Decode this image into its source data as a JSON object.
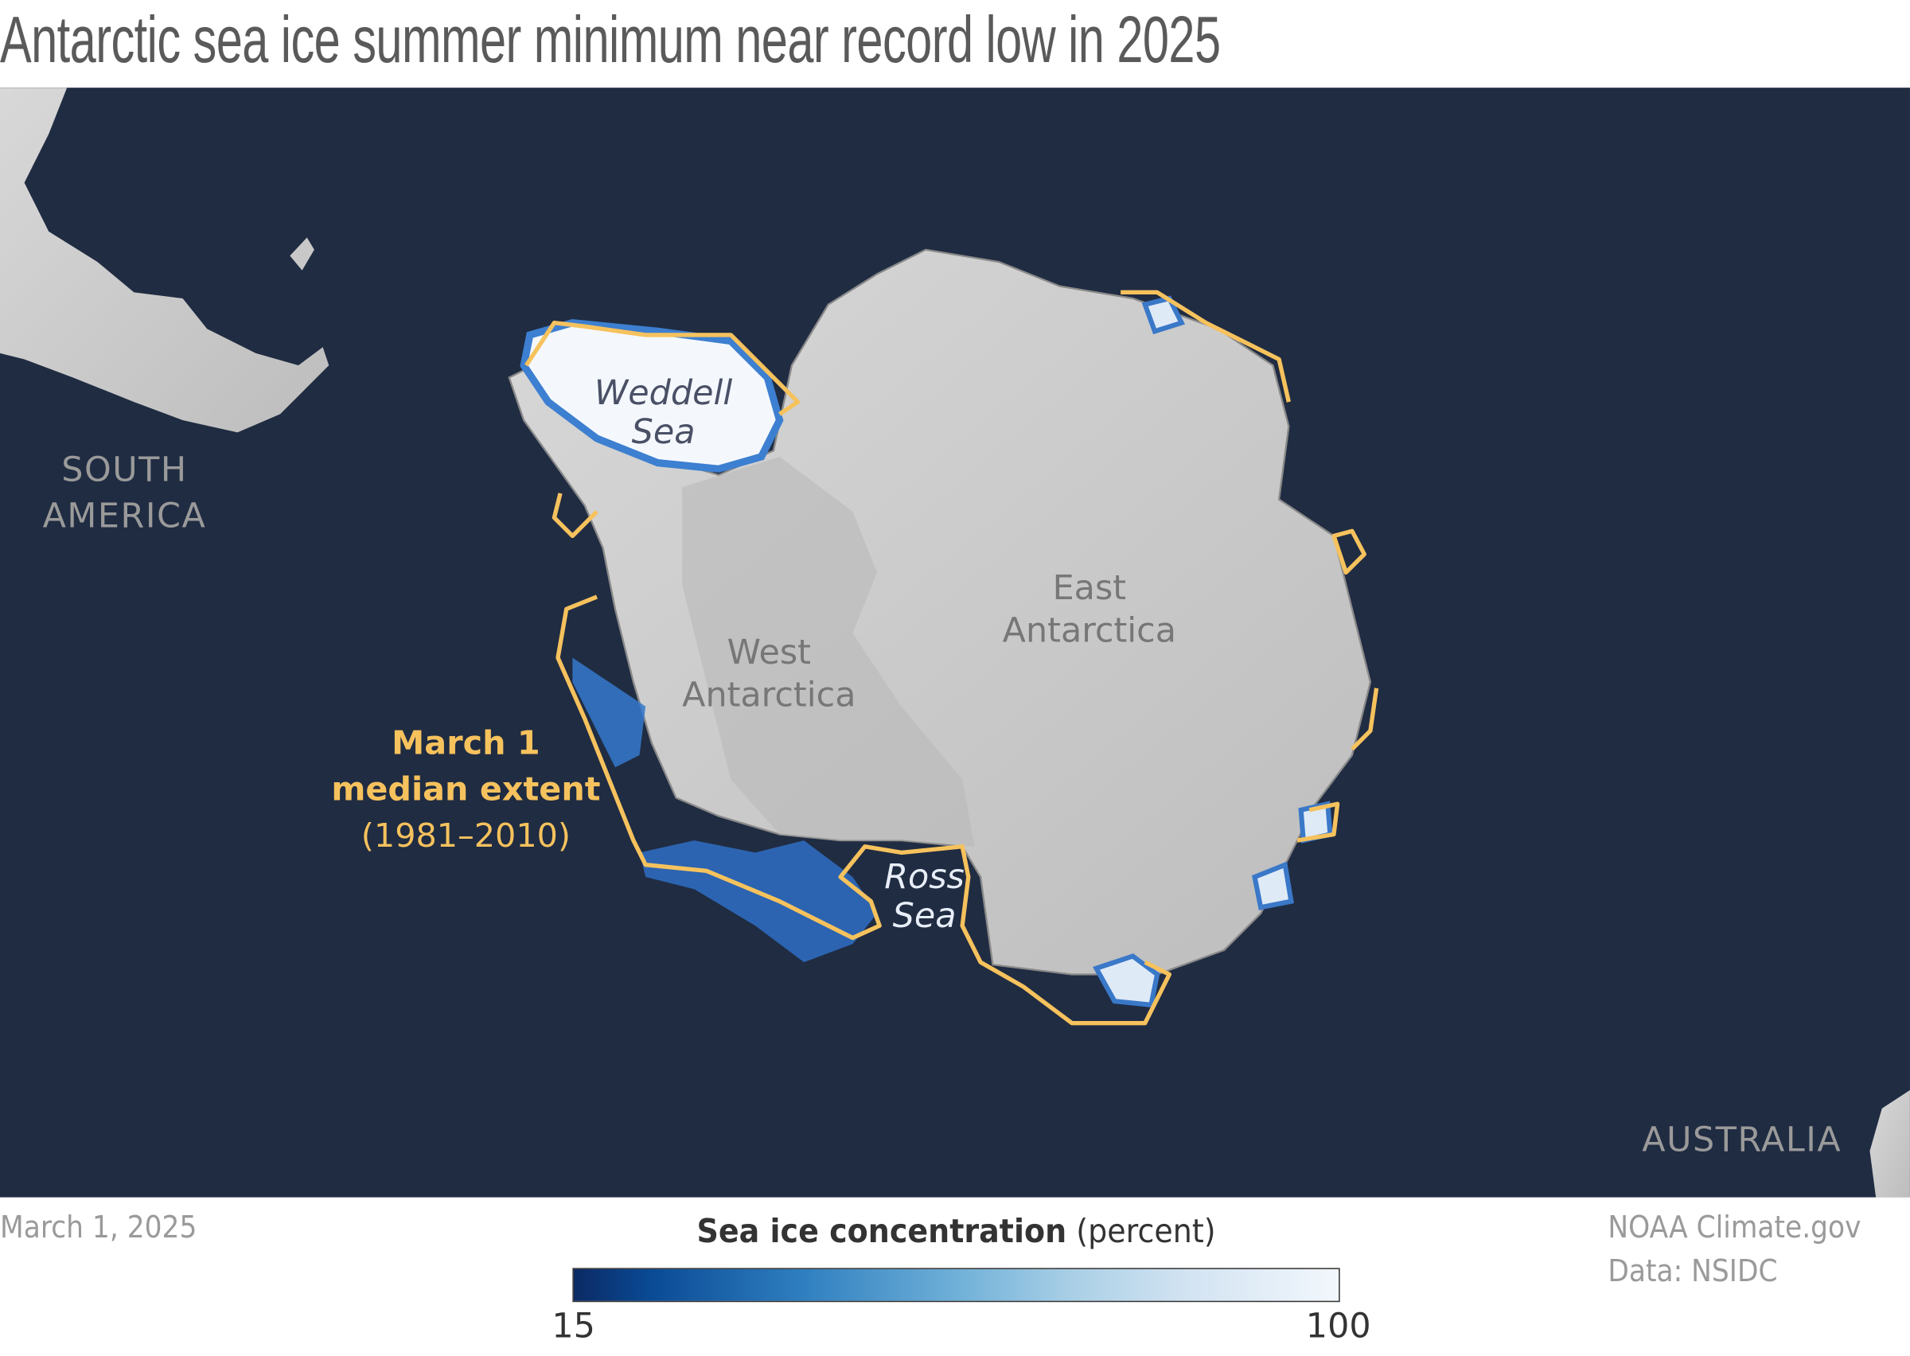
{
  "title": "Antarctic sea ice summer minimum near record low in 2025",
  "map": {
    "labels": {
      "south_america": [
        "SOUTH",
        "AMERICA"
      ],
      "australia": "AUSTRALIA",
      "weddell_sea": [
        "Weddell",
        "Sea"
      ],
      "ross_sea": [
        "Ross",
        "Sea"
      ],
      "west_antarctica": [
        "West",
        "Antarctica"
      ],
      "east_antarctica": [
        "East",
        "Antarctica"
      ],
      "median_extent": [
        "March 1",
        "median extent",
        "(1981–2010)"
      ]
    },
    "colors": {
      "ocean": "#202c42",
      "land": "#c8c8c8",
      "median_extent_line": "#f6c25d"
    }
  },
  "date": "March 1, 2025",
  "credit": [
    "NOAA Climate.gov",
    "Data: NSIDC"
  ],
  "legend": {
    "title_bold": "Sea ice concentration",
    "title_unit": "(percent)",
    "min": "15",
    "max": "100",
    "colors": [
      "#0b2a63",
      "#0a4a95",
      "#2f7fc0",
      "#6fb0d8",
      "#a9cfe6",
      "#d2e3f2",
      "#f2f7fc"
    ]
  }
}
